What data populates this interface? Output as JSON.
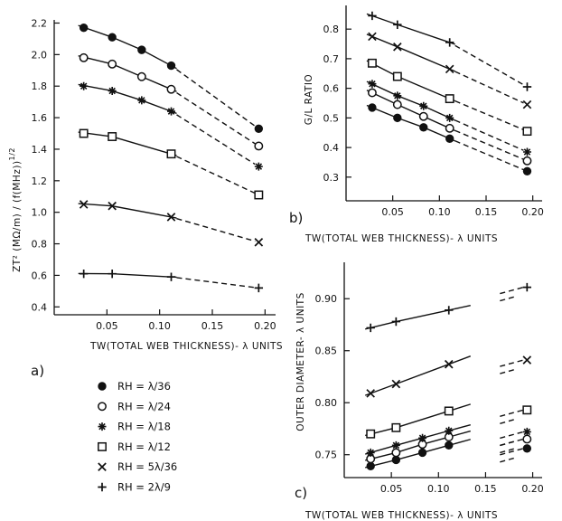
{
  "chart_data": [
    {
      "type": "line",
      "panel_label": "a)",
      "xlabel": "TW(TOTAL WEB THICKNESS)- λ UNITS",
      "ylabel": "ZT² (MΩ/m) / (f(MHz))^1/2",
      "xlim": [
        0.0,
        0.21
      ],
      "ylim": [
        0.35,
        2.22
      ],
      "x_ticks": [
        "0.05",
        "0.10",
        "0.15",
        "0.20"
      ],
      "y_ticks": [
        "0.4",
        "0.6",
        "0.8",
        "1.0",
        "1.2",
        "1.4",
        "1.6",
        "1.8",
        "2.0",
        "2.2"
      ],
      "x_tick_values": [
        0.05,
        0.1,
        0.15,
        0.2
      ],
      "y_tick_values": [
        0.4,
        0.6,
        0.8,
        1.0,
        1.2,
        1.4,
        1.6,
        1.8,
        2.0,
        2.2
      ],
      "solid_until": 0.115,
      "series": [
        {
          "name": "RH = λ/36",
          "marker": "filled-circle",
          "x": [
            0.028,
            0.055,
            0.083,
            0.111,
            0.194
          ],
          "y": [
            2.17,
            2.11,
            2.03,
            1.93,
            1.53
          ]
        },
        {
          "name": "RH = λ/24",
          "marker": "open-circle",
          "x": [
            0.028,
            0.055,
            0.083,
            0.111,
            0.194
          ],
          "y": [
            1.98,
            1.94,
            1.86,
            1.78,
            1.42
          ]
        },
        {
          "name": "RH = λ/18",
          "marker": "asterisk",
          "x": [
            0.028,
            0.055,
            0.083,
            0.111,
            0.194
          ],
          "y": [
            1.8,
            1.77,
            1.71,
            1.64,
            1.29
          ]
        },
        {
          "name": "RH = λ/12",
          "marker": "open-square",
          "x": [
            0.028,
            0.055,
            0.111,
            0.194
          ],
          "y": [
            1.5,
            1.48,
            1.37,
            1.11
          ]
        },
        {
          "name": "RH = 5λ/36",
          "marker": "cross",
          "x": [
            0.028,
            0.055,
            0.111,
            0.194
          ],
          "y": [
            1.05,
            1.04,
            0.97,
            0.81
          ]
        },
        {
          "name": "RH = 2λ/9",
          "marker": "plus",
          "x": [
            0.028,
            0.055,
            0.111,
            0.194
          ],
          "y": [
            0.61,
            0.61,
            0.59,
            0.52
          ]
        }
      ]
    },
    {
      "type": "line",
      "panel_label": "b)",
      "xlabel": "TW(TOTAL WEB THICKNESS)- λ UNITS",
      "ylabel": "G/L RATIO",
      "xlim": [
        0.0,
        0.21
      ],
      "ylim": [
        0.22,
        0.88
      ],
      "x_ticks": [
        "0.05",
        "0.10",
        "0.15",
        "0.20"
      ],
      "y_ticks": [
        "0.3",
        "0.4",
        "0.5",
        "0.6",
        "0.7",
        "0.8"
      ],
      "x_tick_values": [
        0.05,
        0.1,
        0.15,
        0.2
      ],
      "y_tick_values": [
        0.3,
        0.4,
        0.5,
        0.6,
        0.7,
        0.8
      ],
      "solid_until": 0.115,
      "series": [
        {
          "name": "RH = λ/36",
          "marker": "filled-circle",
          "x": [
            0.028,
            0.055,
            0.083,
            0.111,
            0.194
          ],
          "y": [
            0.535,
            0.5,
            0.468,
            0.43,
            0.32
          ]
        },
        {
          "name": "RH = λ/24",
          "marker": "open-circle",
          "x": [
            0.028,
            0.055,
            0.083,
            0.111,
            0.194
          ],
          "y": [
            0.585,
            0.545,
            0.505,
            0.465,
            0.355
          ]
        },
        {
          "name": "RH = λ/18",
          "marker": "asterisk",
          "x": [
            0.028,
            0.055,
            0.083,
            0.111,
            0.194
          ],
          "y": [
            0.615,
            0.575,
            0.54,
            0.5,
            0.385
          ]
        },
        {
          "name": "RH = λ/12",
          "marker": "open-square",
          "x": [
            0.028,
            0.055,
            0.111,
            0.194
          ],
          "y": [
            0.685,
            0.64,
            0.565,
            0.455
          ]
        },
        {
          "name": "RH = 5λ/36",
          "marker": "cross",
          "x": [
            0.028,
            0.055,
            0.111,
            0.194
          ],
          "y": [
            0.775,
            0.74,
            0.665,
            0.545
          ]
        },
        {
          "name": "RH = 2λ/9",
          "marker": "plus",
          "x": [
            0.028,
            0.055,
            0.111,
            0.194
          ],
          "y": [
            0.845,
            0.815,
            0.755,
            0.605
          ]
        }
      ]
    },
    {
      "type": "line",
      "panel_label": "c)",
      "xlabel": "TW(TOTAL WEB THICKNESS)- λ UNITS",
      "ylabel": "OUTER DIAMETER- λ UNITS",
      "xlim": [
        0.0,
        0.21
      ],
      "ylim": [
        0.728,
        0.935
      ],
      "x_ticks": [
        "0.05",
        "0.10",
        "0.15",
        "0.20"
      ],
      "y_ticks": [
        "0.75",
        "0.80",
        "0.85",
        "0.90"
      ],
      "x_tick_values": [
        0.05,
        0.1,
        0.15,
        0.2
      ],
      "y_tick_values": [
        0.75,
        0.8,
        0.85,
        0.9
      ],
      "solid_until": 0.115,
      "series": [
        {
          "name": "RH = λ/36",
          "marker": "filled-circle",
          "x": [
            0.028,
            0.055,
            0.083,
            0.111,
            0.194
          ],
          "y": [
            0.739,
            0.745,
            0.752,
            0.759,
            0.756
          ]
        },
        {
          "name": "RH = λ/24",
          "marker": "open-circle",
          "x": [
            0.028,
            0.055,
            0.083,
            0.111,
            0.194
          ],
          "y": [
            0.746,
            0.752,
            0.76,
            0.767,
            0.765
          ]
        },
        {
          "name": "RH = λ/18",
          "marker": "asterisk",
          "x": [
            0.028,
            0.055,
            0.083,
            0.111,
            0.194
          ],
          "y": [
            0.752,
            0.759,
            0.766,
            0.773,
            0.772
          ]
        },
        {
          "name": "RH = λ/12",
          "marker": "open-square",
          "x": [
            0.028,
            0.055,
            0.111,
            0.194
          ],
          "y": [
            0.77,
            0.776,
            0.792,
            0.793
          ]
        },
        {
          "name": "RH = 5λ/36",
          "marker": "cross",
          "x": [
            0.028,
            0.055,
            0.111,
            0.194
          ],
          "y": [
            0.809,
            0.818,
            0.837,
            0.841
          ]
        },
        {
          "name": "RH = 2λ/9",
          "marker": "plus",
          "x": [
            0.028,
            0.055,
            0.111,
            0.194
          ],
          "y": [
            0.872,
            0.878,
            0.889,
            0.911
          ]
        }
      ]
    }
  ],
  "legend": [
    {
      "marker": "filled-circle",
      "label": "RH =  λ/36"
    },
    {
      "marker": "open-circle",
      "label": "RH =  λ/24"
    },
    {
      "marker": "asterisk",
      "label": "RH =  λ/18"
    },
    {
      "marker": "open-square",
      "label": "RH =  λ/12"
    },
    {
      "marker": "cross",
      "label": "RH = 5λ/36"
    },
    {
      "marker": "plus",
      "label": "RH = 2λ/9"
    }
  ]
}
